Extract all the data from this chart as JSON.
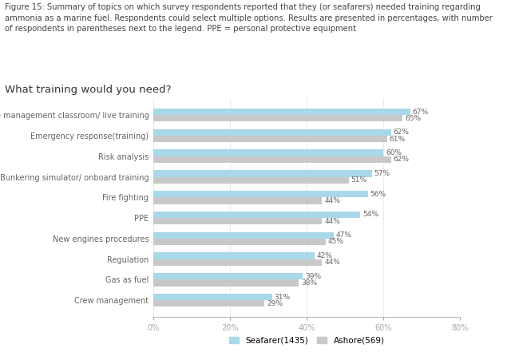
{
  "title_text": "Figure 15: Summary of topics on which survey respondents reported that they (or seafarers) needed training regarding\nammonia as a marine fuel. Respondents could select multiple options. Results are presented in percentages, with number\nof respondents in parentheses next to the legend. PPE = personal protective equipment",
  "subtitle": "What training would you need?",
  "categories": [
    "Leakage management classroom/ live training",
    "Emergency response(training)",
    "Risk analysis",
    "Bunkering simulator/ onboard training",
    "Fire fighting",
    "PPE",
    "New engines procedures",
    "Regulation",
    "Gas as fuel",
    "Crew management"
  ],
  "seafarer_values": [
    67,
    62,
    60,
    57,
    56,
    54,
    47,
    42,
    39,
    31
  ],
  "ashore_values": [
    65,
    61,
    62,
    51,
    44,
    44,
    45,
    44,
    38,
    29
  ],
  "seafarer_color": "#a8d8ea",
  "ashore_color": "#c8c8c8",
  "seafarer_label": "Seafarer(1435)",
  "ashore_label": "Ashore(569)",
  "xlim": [
    0,
    80
  ],
  "xticks": [
    0,
    20,
    40,
    60,
    80
  ],
  "bar_height": 0.32,
  "background_color": "#ffffff",
  "title_fontsize": 7.2,
  "subtitle_fontsize": 9.5,
  "label_fontsize": 7.0,
  "value_fontsize": 6.5,
  "legend_fontsize": 7.5,
  "title_color": "#444444",
  "label_color": "#666666",
  "value_color": "#666666"
}
